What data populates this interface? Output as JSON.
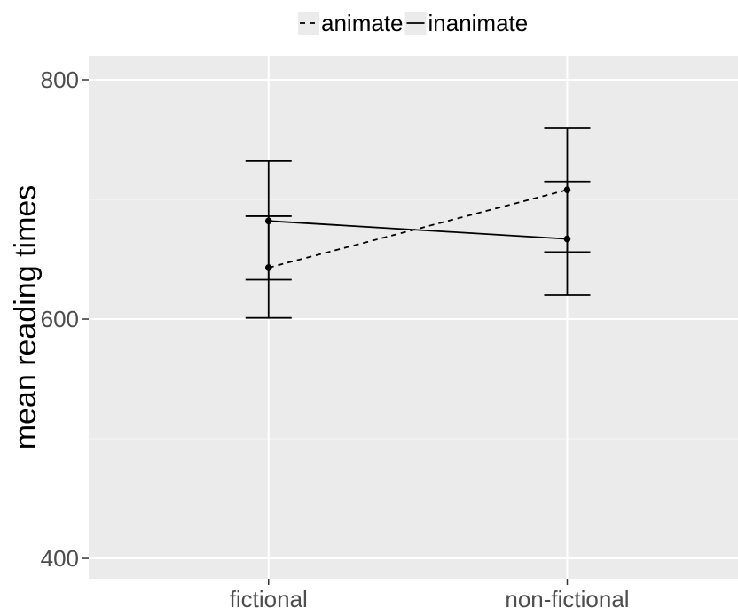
{
  "chart_data": {
    "type": "line",
    "title": "",
    "xlabel": "",
    "ylabel": "mean reading times",
    "categories": [
      "fictional",
      "non-fictional"
    ],
    "ylim": [
      383,
      820
    ],
    "yticks": [
      400,
      600,
      800
    ],
    "grid": true,
    "legend_position": "top",
    "series": [
      {
        "name": "animate",
        "linestyle": "dashed",
        "values": [
          643,
          708
        ],
        "error_low": [
          601,
          656
        ],
        "error_high": [
          686,
          760
        ]
      },
      {
        "name": "inanimate",
        "linestyle": "solid",
        "values": [
          682,
          667
        ],
        "error_low": [
          633,
          620
        ],
        "error_high": [
          732,
          715
        ]
      }
    ],
    "colors": {
      "panel": "#ebebeb",
      "grid_major": "#ffffff",
      "ink": "#000000",
      "tick_text": "#4d4d4d"
    }
  }
}
